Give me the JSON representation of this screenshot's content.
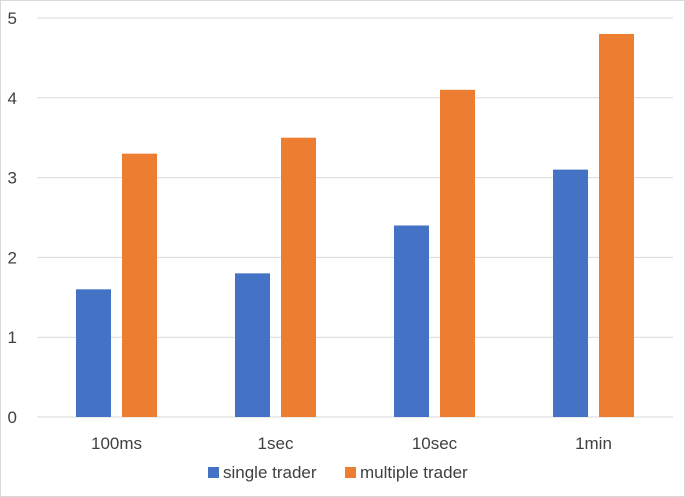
{
  "chart_data": {
    "type": "bar",
    "categories": [
      "100ms",
      "1sec",
      "10sec",
      "1min"
    ],
    "series": [
      {
        "name": "single trader",
        "values": [
          1.6,
          1.8,
          2.4,
          3.1
        ],
        "color": "#4472C4"
      },
      {
        "name": "multiple trader",
        "values": [
          3.3,
          3.5,
          4.1,
          4.8
        ],
        "color": "#ED7D31"
      }
    ],
    "title": "",
    "xlabel": "",
    "ylabel": "",
    "ylim": [
      0,
      5
    ],
    "yticks": [
      0,
      1,
      2,
      3,
      4,
      5
    ],
    "grid": true,
    "legend": "bottom"
  }
}
